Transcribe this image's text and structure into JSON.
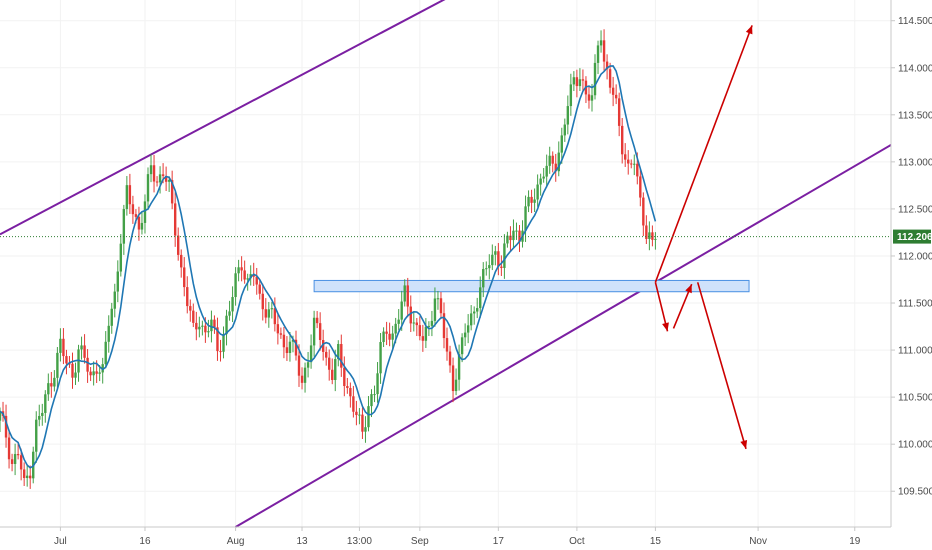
{
  "chart_data": {
    "type": "candlestick",
    "instrument_hint": "",
    "y_axis": {
      "position": "right",
      "ylim": [
        109.12,
        114.72
      ],
      "ticks": [
        109.5,
        110.0,
        110.5,
        111.0,
        111.5,
        112.0,
        112.5,
        113.0,
        113.5,
        114.0,
        114.5
      ],
      "tick_labels": [
        "109.500",
        "110.000",
        "110.500",
        "111.000",
        "111.500",
        "112.000",
        "112.500",
        "113.000",
        "113.500",
        "114.000",
        "114.500"
      ]
    },
    "x_axis": {
      "xlim": [
        0,
        295
      ],
      "ticks": [
        {
          "label": "Jul",
          "x": 20
        },
        {
          "label": "16",
          "x": 48
        },
        {
          "label": "Aug",
          "x": 78
        },
        {
          "label": "13",
          "x": 100
        },
        {
          "label": "13:00",
          "x": 119
        },
        {
          "label": "Sep",
          "x": 139
        },
        {
          "label": "17",
          "x": 165
        },
        {
          "label": "Oct",
          "x": 191
        },
        {
          "label": "15",
          "x": 217
        },
        {
          "label": "Nov",
          "x": 251
        },
        {
          "label": "19",
          "x": 283
        }
      ]
    },
    "current_price": {
      "value": 112.206,
      "label": "112.206",
      "color": "#2e7d32"
    },
    "candles_note": "closing prices sampled at bar index x",
    "closes": [
      [
        0,
        110.3
      ],
      [
        2,
        110.1
      ],
      [
        4,
        109.8
      ],
      [
        6,
        109.9
      ],
      [
        8,
        109.55
      ],
      [
        10,
        109.75
      ],
      [
        12,
        110.2
      ],
      [
        14,
        110.35
      ],
      [
        16,
        110.6
      ],
      [
        18,
        110.8
      ],
      [
        20,
        111.05
      ],
      [
        22,
        110.85
      ],
      [
        24,
        110.75
      ],
      [
        26,
        111.0
      ],
      [
        28,
        110.9
      ],
      [
        30,
        110.7
      ],
      [
        32,
        110.85
      ],
      [
        34,
        110.75
      ],
      [
        36,
        111.3
      ],
      [
        38,
        111.6
      ],
      [
        40,
        112.2
      ],
      [
        42,
        112.65
      ],
      [
        44,
        112.5
      ],
      [
        46,
        112.3
      ],
      [
        48,
        112.55
      ],
      [
        50,
        112.95
      ],
      [
        52,
        112.8
      ],
      [
        54,
        112.9
      ],
      [
        56,
        112.7
      ],
      [
        58,
        112.3
      ],
      [
        60,
        111.85
      ],
      [
        62,
        111.5
      ],
      [
        64,
        111.2
      ],
      [
        66,
        111.35
      ],
      [
        68,
        111.15
      ],
      [
        70,
        111.3
      ],
      [
        72,
        111.0
      ],
      [
        74,
        111.2
      ],
      [
        76,
        111.4
      ],
      [
        78,
        111.75
      ],
      [
        80,
        111.95
      ],
      [
        82,
        111.7
      ],
      [
        84,
        111.8
      ],
      [
        86,
        111.55
      ],
      [
        88,
        111.45
      ],
      [
        90,
        111.35
      ],
      [
        92,
        111.2
      ],
      [
        94,
        111.05
      ],
      [
        96,
        111.1
      ],
      [
        98,
        110.9
      ],
      [
        100,
        110.65
      ],
      [
        102,
        110.95
      ],
      [
        104,
        111.25
      ],
      [
        106,
        111.15
      ],
      [
        108,
        110.9
      ],
      [
        110,
        110.75
      ],
      [
        112,
        110.95
      ],
      [
        114,
        110.7
      ],
      [
        116,
        110.5
      ],
      [
        118,
        110.3
      ],
      [
        120,
        110.1
      ],
      [
        122,
        110.45
      ],
      [
        124,
        110.55
      ],
      [
        126,
        111.0
      ],
      [
        128,
        111.25
      ],
      [
        130,
        111.15
      ],
      [
        132,
        111.35
      ],
      [
        134,
        111.6
      ],
      [
        136,
        111.4
      ],
      [
        138,
        111.2
      ],
      [
        140,
        111.1
      ],
      [
        142,
        111.25
      ],
      [
        144,
        111.6
      ],
      [
        146,
        111.35
      ],
      [
        148,
        110.95
      ],
      [
        150,
        110.65
      ],
      [
        152,
        110.9
      ],
      [
        154,
        111.2
      ],
      [
        156,
        111.35
      ],
      [
        158,
        111.55
      ],
      [
        160,
        111.75
      ],
      [
        162,
        111.95
      ],
      [
        164,
        112.05
      ],
      [
        166,
        111.9
      ],
      [
        168,
        112.15
      ],
      [
        170,
        112.3
      ],
      [
        172,
        112.2
      ],
      [
        174,
        112.45
      ],
      [
        176,
        112.6
      ],
      [
        178,
        112.75
      ],
      [
        180,
        112.9
      ],
      [
        182,
        112.95
      ],
      [
        184,
        113.0
      ],
      [
        186,
        113.25
      ],
      [
        188,
        113.6
      ],
      [
        190,
        113.85
      ],
      [
        192,
        113.95
      ],
      [
        194,
        113.7
      ],
      [
        196,
        113.65
      ],
      [
        198,
        114.3
      ],
      [
        199,
        114.4
      ],
      [
        200,
        114.05
      ],
      [
        202,
        113.8
      ],
      [
        204,
        113.6
      ],
      [
        206,
        113.2
      ],
      [
        208,
        112.9
      ],
      [
        210,
        113.0
      ],
      [
        212,
        112.6
      ],
      [
        214,
        112.25
      ],
      [
        216,
        112.1
      ],
      [
        217,
        112.206
      ]
    ],
    "annotations": [
      {
        "type": "channel-upper-line",
        "color": "#7b1fa2"
      },
      {
        "type": "channel-lower-line",
        "color": "#7b1fa2"
      },
      {
        "type": "support-zone",
        "y_range": [
          111.62,
          111.74
        ],
        "color": "#1e88e5"
      },
      {
        "type": "projection-arrow-up",
        "color": "#c62828"
      },
      {
        "type": "projection-arrow-down",
        "color": "#c62828"
      }
    ],
    "colors": {
      "up_candle": "#43a047",
      "down_candle": "#e53935",
      "moving_average": "#1f77b4",
      "channel": "#7b1fa2",
      "zone_fill": "#cfe2fb",
      "zone_stroke": "#4a90e2",
      "arrow": "#cc0000"
    }
  }
}
